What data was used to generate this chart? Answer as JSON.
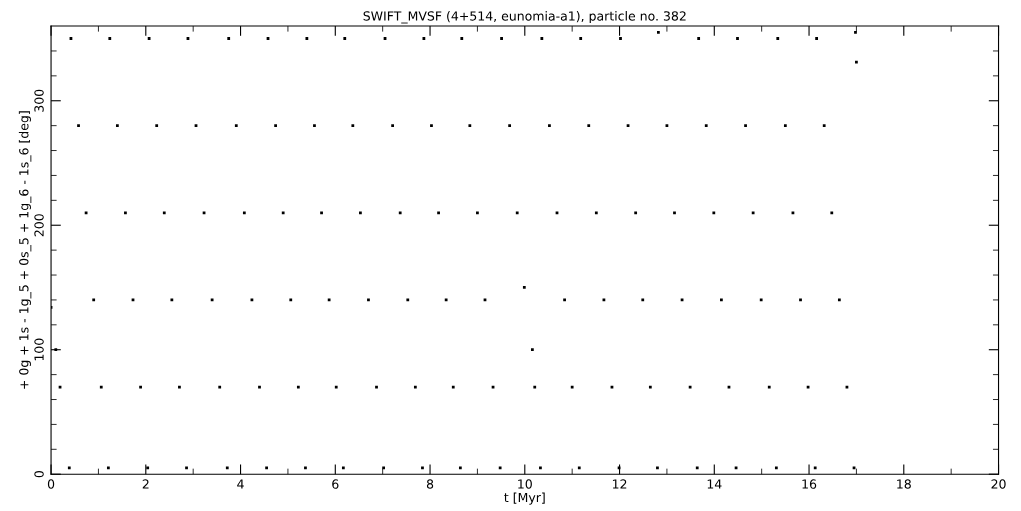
{
  "chart_data": {
    "type": "scatter",
    "title": "SWIFT_MVSF (4+514, eunomia-a1), particle no. 382",
    "xlabel": "t [Myr]",
    "ylabel": "+ 0g + 1s - 1g_5 + 0s_5 + 1g_6 - 1s_6 [deg]",
    "marker": "square",
    "grid": false,
    "xlim": [
      0,
      20
    ],
    "ylim": [
      0,
      360
    ],
    "xticks": [
      0,
      {
        "value": 1,
        "label": null
      },
      2,
      {
        "value": 3,
        "label": null
      },
      4,
      {
        "value": 5,
        "label": null
      },
      6,
      {
        "value": 7,
        "label": null
      },
      8,
      {
        "value": 9,
        "label": null
      },
      10,
      {
        "value": 11,
        "label": null
      },
      12,
      {
        "value": 13,
        "label": null
      },
      14,
      {
        "value": 15,
        "label": null
      },
      16,
      {
        "value": 17,
        "label": null
      },
      18,
      {
        "value": 19,
        "label": null
      },
      20
    ],
    "yticks": [
      0,
      {
        "value": 20,
        "label": null
      },
      {
        "value": 40,
        "label": null
      },
      {
        "value": 60,
        "label": null
      },
      {
        "value": 80,
        "label": null
      },
      100,
      {
        "value": 120,
        "label": null
      },
      {
        "value": 140,
        "label": null
      },
      {
        "value": 160,
        "label": null
      },
      {
        "value": 180,
        "label": null
      },
      200,
      {
        "value": 220,
        "label": null
      },
      {
        "value": 240,
        "label": null
      },
      {
        "value": 260,
        "label": null
      },
      {
        "value": 280,
        "label": null
      },
      300,
      {
        "value": 320,
        "label": null
      },
      {
        "value": 340,
        "label": null
      }
    ],
    "series": [
      {
        "color": "#000000",
        "x": [
          0.0,
          0.1,
          0.19,
          0.385,
          0.42,
          0.58,
          0.74,
          0.9,
          1.06,
          1.21,
          1.24,
          1.4,
          1.57,
          1.73,
          1.89,
          2.04,
          2.07,
          2.23,
          2.39,
          2.55,
          2.71,
          2.86,
          2.89,
          3.06,
          3.23,
          3.4,
          3.56,
          3.72,
          3.75,
          3.91,
          4.08,
          4.24,
          4.4,
          4.55,
          4.58,
          4.74,
          4.9,
          5.06,
          5.22,
          5.37,
          5.4,
          5.56,
          5.71,
          5.87,
          6.02,
          6.17,
          6.2,
          6.37,
          6.53,
          6.7,
          6.87,
          7.02,
          7.05,
          7.21,
          7.37,
          7.53,
          7.69,
          7.84,
          7.87,
          8.03,
          8.18,
          8.34,
          8.49,
          8.64,
          8.67,
          8.84,
          9.0,
          9.16,
          9.33,
          9.48,
          9.51,
          9.68,
          9.84,
          9.99,
          10.16,
          10.21,
          10.33,
          10.36,
          10.52,
          10.68,
          10.84,
          11.0,
          11.15,
          11.18,
          11.35,
          11.51,
          11.67,
          11.84,
          11.99,
          12.02,
          12.18,
          12.34,
          12.49,
          12.65,
          12.8,
          12.82,
          13.0,
          13.16,
          13.32,
          13.49,
          13.64,
          13.67,
          13.83,
          13.99,
          14.15,
          14.31,
          14.46,
          14.49,
          14.66,
          14.82,
          14.99,
          15.16,
          15.31,
          15.34,
          15.5,
          15.66,
          15.82,
          15.98,
          16.13,
          16.16,
          16.32,
          16.48,
          16.64,
          16.8,
          16.95,
          16.98,
          17.0
        ],
        "values": [
          134,
          100,
          70,
          5,
          350,
          280,
          210,
          140,
          70,
          5,
          350,
          280,
          210,
          140,
          70,
          5,
          350,
          280,
          210,
          140,
          70,
          5,
          350,
          280,
          210,
          140,
          70,
          5,
          350,
          280,
          210,
          140,
          70,
          5,
          350,
          280,
          210,
          140,
          70,
          5,
          350,
          280,
          210,
          140,
          70,
          5,
          350,
          280,
          210,
          140,
          70,
          5,
          350,
          280,
          210,
          140,
          70,
          5,
          350,
          280,
          210,
          140,
          70,
          5,
          350,
          280,
          210,
          140,
          70,
          5,
          350,
          280,
          210,
          150,
          100,
          70,
          5,
          350,
          280,
          210,
          140,
          70,
          5,
          350,
          280,
          210,
          140,
          70,
          5,
          350,
          280,
          210,
          140,
          70,
          5,
          355,
          280,
          210,
          140,
          70,
          5,
          350,
          280,
          210,
          140,
          70,
          5,
          350,
          280,
          210,
          140,
          70,
          5,
          350,
          280,
          210,
          140,
          70,
          5,
          350,
          280,
          210,
          140,
          70,
          5,
          355,
          331
        ]
      }
    ]
  }
}
